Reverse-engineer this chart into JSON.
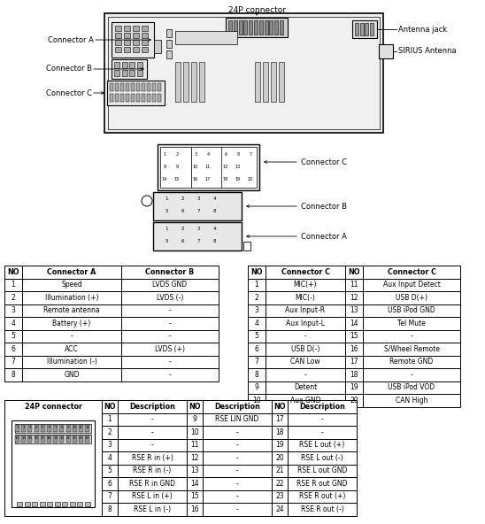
{
  "bg_color": "#ffffff",
  "text_color": "#000000",
  "line_color": "#000000",
  "top_label_24p": "24P connector",
  "top_labels_left": [
    "Connector A",
    "Connector B",
    "Connector C"
  ],
  "top_labels_right": [
    "Antenna jack",
    "SIRIUS Antenna"
  ],
  "mid_labels_right": [
    "Connector C",
    "Connector B",
    "Connector A"
  ],
  "table1_headers": [
    "NO",
    "Connector A",
    "Connector B"
  ],
  "table1_rows": [
    [
      "1",
      "Speed",
      "LVDS GND"
    ],
    [
      "2",
      "Illumination (+)",
      "LVDS (-)"
    ],
    [
      "3",
      "Remote antenna",
      "-"
    ],
    [
      "4",
      "Battery (+)",
      "-"
    ],
    [
      "5",
      "-",
      "-"
    ],
    [
      "6",
      "ACC",
      "LVDS (+)"
    ],
    [
      "7",
      "Illumination (-)",
      "-"
    ],
    [
      "8",
      "GND",
      "-"
    ]
  ],
  "table2_headers": [
    "NO",
    "Connector C",
    "NO",
    "Connector C"
  ],
  "table2_rows": [
    [
      "1",
      "MIC(+)",
      "11",
      "Aux Input Detect"
    ],
    [
      "2",
      "MIC(-)",
      "12",
      "USB D(+)"
    ],
    [
      "3",
      "Aux Input-R",
      "13",
      "USB iPod GND"
    ],
    [
      "4",
      "Aux Input-L",
      "14",
      "Tel Mute"
    ],
    [
      "5",
      "-",
      "15",
      "-"
    ],
    [
      "6",
      "USB D(-)",
      "16",
      "S/Wheel Remote"
    ],
    [
      "7",
      "CAN Low",
      "17",
      "Remote GND"
    ],
    [
      "8",
      "-",
      "18",
      "-"
    ],
    [
      "9",
      "Detent",
      "19",
      "USB iPod VOD"
    ],
    [
      "10",
      "Aux GND",
      "20",
      "CAN High"
    ]
  ],
  "table3_header_left": "24P connector",
  "table3_col_headers": [
    "NO",
    "Description",
    "NO",
    "Description",
    "NO",
    "Description"
  ],
  "table3_rows": [
    [
      "1",
      "-",
      "9",
      "RSE LIN GND",
      "17",
      "-"
    ],
    [
      "2",
      "-",
      "10",
      "-",
      "18",
      "-"
    ],
    [
      "3",
      "-",
      "11",
      "-",
      "19",
      "RSE L out (+)"
    ],
    [
      "4",
      "RSE R in (+)",
      "12",
      "-",
      "20",
      "RSE L out (-)"
    ],
    [
      "5",
      "RSE R in (-)",
      "13",
      "-",
      "21",
      "RSE L out GND"
    ],
    [
      "6",
      "RSE R in GND",
      "14",
      "-",
      "22",
      "RSE R out GND"
    ],
    [
      "7",
      "RSE L in (+)",
      "15",
      "-",
      "23",
      "RSE R out (+)"
    ],
    [
      "8",
      "RSE L in (-)",
      "16",
      "-",
      "24",
      "RSE R out (-)"
    ]
  ]
}
